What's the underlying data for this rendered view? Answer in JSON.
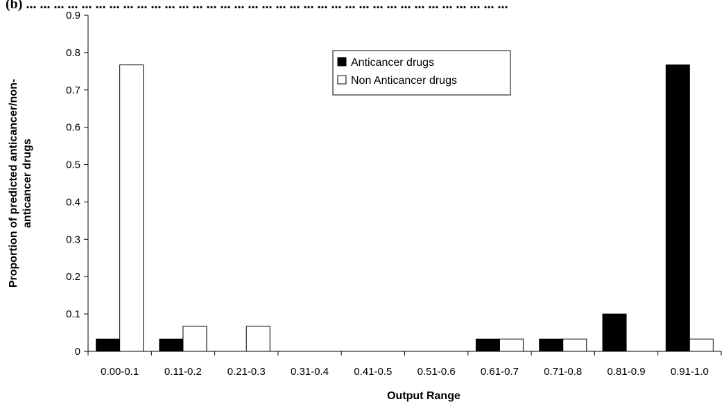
{
  "caption": "(b) ... ... ... ... ... ... ... ... ... ... ... ... ... ... ... ... ... ... ... ... ... ... ... ... ... ... ... ... ... ... ... ... ... ... ...",
  "chart_data": {
    "type": "bar",
    "categories": [
      "0.00-0.1",
      "0.11-0.2",
      "0.21-0.3",
      "0.31-0.4",
      "0.41-0.5",
      "0.51-0.6",
      "0.61-0.7",
      "0.71-0.8",
      "0.81-0.9",
      "0.91-1.0"
    ],
    "series": [
      {
        "name": "Anticancer drugs",
        "color": "#000000",
        "values": [
          0.033,
          0.033,
          0,
          0,
          0,
          0,
          0.033,
          0.033,
          0.1,
          0.767
        ]
      },
      {
        "name": "Non Anticancer drugs",
        "color": "#ffffff",
        "values": [
          0.767,
          0.067,
          0.067,
          0,
          0,
          0,
          0.033,
          0.033,
          0,
          0.033
        ]
      }
    ],
    "title": "",
    "xlabel": "Output Range",
    "ylabel_lines": [
      "Proportion of predicted anticancer/non-",
      "anticancer drugs"
    ],
    "ylim": [
      0,
      0.9
    ],
    "yticks": [
      "0",
      "0.1",
      "0.2",
      "0.3",
      "0.4",
      "0.5",
      "0.6",
      "0.7",
      "0.8",
      "0.9"
    ],
    "grid": false,
    "legend_position": "top-center"
  }
}
